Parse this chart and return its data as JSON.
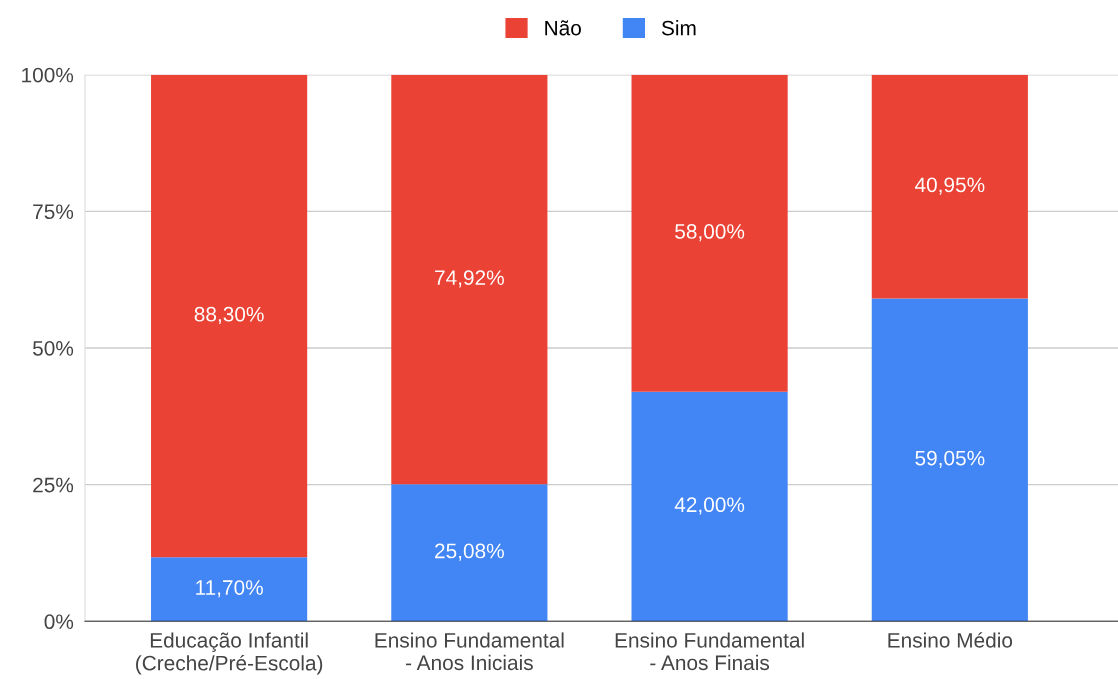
{
  "chart_data": {
    "type": "bar",
    "stacked": true,
    "categories": [
      "Educação Infantil\n(Creche/Pré-Escola)",
      "Ensino Fundamental\n- Anos Iniciais",
      "Ensino Fundamental\n- Anos Finais",
      "Ensino Médio"
    ],
    "series": [
      {
        "name": "Sim",
        "color": "#4285f4",
        "values": [
          11.7,
          25.08,
          42.0,
          59.05
        ],
        "value_labels": [
          "11,70%",
          "25,08%",
          "42,00%",
          "59,05%"
        ]
      },
      {
        "name": "Não",
        "color": "#ea4335",
        "values": [
          88.3,
          74.92,
          58.0,
          40.95
        ],
        "value_labels": [
          "88,30%",
          "74,92%",
          "58,00%",
          "40,95%"
        ]
      }
    ],
    "ylim": [
      0,
      100
    ],
    "yticks": [
      {
        "value": 0,
        "label": "0%"
      },
      {
        "value": 25,
        "label": "25%"
      },
      {
        "value": 50,
        "label": "50%"
      },
      {
        "value": 75,
        "label": "75%"
      },
      {
        "value": 100,
        "label": "100%"
      }
    ],
    "grid": "y",
    "legend": "top"
  }
}
